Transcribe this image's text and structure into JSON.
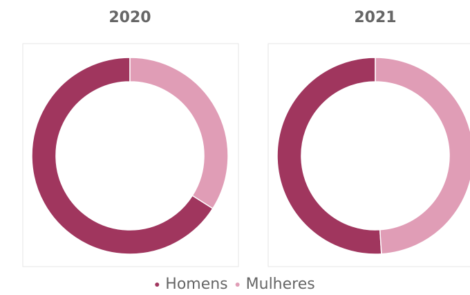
{
  "chart_data": [
    {
      "type": "pie",
      "title": "2020",
      "categories": [
        "Homens",
        "Mulheres"
      ],
      "values": [
        66,
        34
      ],
      "colors": [
        "#a0365e",
        "#e09db6"
      ],
      "donut": true
    },
    {
      "type": "pie",
      "title": "2021",
      "categories": [
        "Homens",
        "Mulheres"
      ],
      "values": [
        51,
        49
      ],
      "colors": [
        "#a0365e",
        "#e09db6"
      ],
      "donut": true
    }
  ]
}
